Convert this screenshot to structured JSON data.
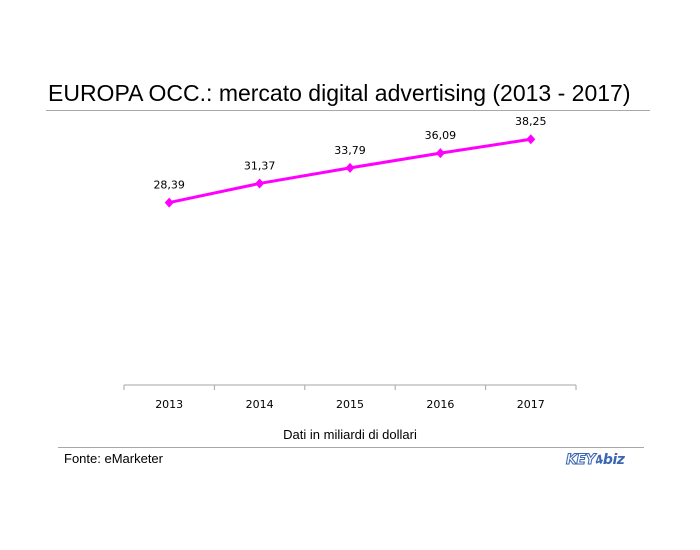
{
  "chart_data": {
    "type": "line",
    "title": "EUROPA OCC.: mercato digital advertising (2013 - 2017)",
    "xlabel": "Dati in miliardi di dollari",
    "ylabel": "",
    "categories": [
      "2013",
      "2014",
      "2015",
      "2016",
      "2017"
    ],
    "series": [
      {
        "values": [
          28.39,
          31.37,
          33.79,
          36.09,
          38.25
        ],
        "labels": [
          "28,39",
          "31,37",
          "33,79",
          "36,09",
          "38,25"
        ],
        "color": "#ff00ff"
      }
    ],
    "ylim": [
      0,
      40
    ],
    "grid": false,
    "y_axis_visible": false,
    "legend": "none",
    "marker": "diamond"
  },
  "source": "Fonte: eMarketer",
  "logo": {
    "text_key": "KEY",
    "text_mark": "4",
    "text_biz": "biz",
    "color": "#3a66b4"
  }
}
